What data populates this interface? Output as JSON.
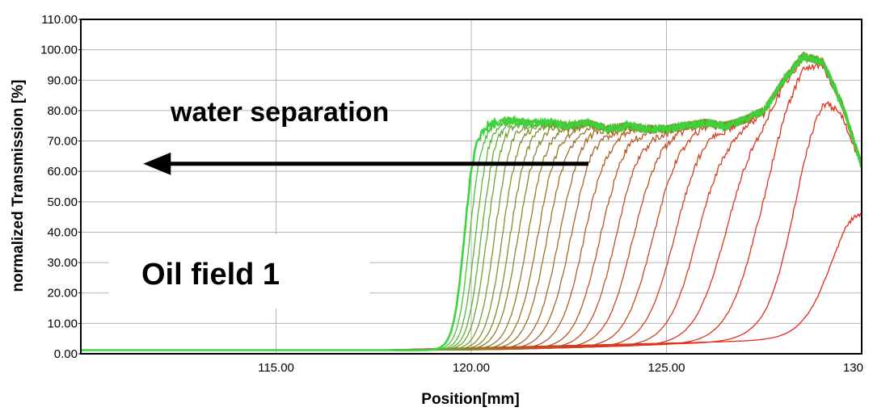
{
  "chart_data": {
    "type": "line",
    "title": "",
    "xlabel": "Position[mm]",
    "ylabel": "normalized Transmission [%]",
    "xlim": [
      110.0,
      130.0
    ],
    "ylim": [
      0,
      110
    ],
    "x_ticks": [
      "115.00",
      "120.00",
      "125.00",
      "130"
    ],
    "x_tick_values": [
      115,
      120,
      125,
      130
    ],
    "y_ticks": [
      "0.00",
      "10.00",
      "20.00",
      "30.00",
      "40.00",
      "50.00",
      "60.00",
      "70.00",
      "80.00",
      "90.00",
      "100.00",
      "110.00"
    ],
    "y_tick_values": [
      0,
      10,
      20,
      30,
      40,
      50,
      60,
      70,
      80,
      90,
      100,
      110
    ],
    "grid": true,
    "annotations": [
      {
        "text": "water separation",
        "arrow_from": [
          123.0,
          62.5
        ],
        "arrow_to": [
          111.6,
          62.5
        ]
      },
      {
        "text": "Oil field 1"
      }
    ],
    "colors": {
      "first_profile": "#3ad53a",
      "last_profile": "#e8291c",
      "grid": "#b4b4b4"
    },
    "plateau_profile": {
      "x": [
        119.7,
        120.0,
        120.5,
        121.0,
        121.5,
        122.0,
        122.5,
        123.0,
        123.5,
        124.0,
        124.5,
        125.0,
        125.5,
        126.0,
        126.5,
        127.0,
        127.5,
        128.0,
        128.5,
        129.0,
        129.5,
        130.0
      ],
      "y": [
        68,
        74,
        76,
        77,
        76,
        76,
        75,
        76,
        74,
        75,
        74,
        74,
        75,
        76,
        75,
        77,
        80,
        90,
        98,
        96,
        82,
        62
      ]
    },
    "series": [
      {
        "front_position": 119.8,
        "baseline_end": 0.8
      },
      {
        "front_position": 119.95,
        "baseline_end": 0.9
      },
      {
        "front_position": 120.1,
        "baseline_end": 1.0
      },
      {
        "front_position": 120.25,
        "baseline_end": 1.0
      },
      {
        "front_position": 120.4,
        "baseline_end": 1.1
      },
      {
        "front_position": 120.6,
        "baseline_end": 1.1
      },
      {
        "front_position": 120.8,
        "baseline_end": 1.2
      },
      {
        "front_position": 121.0,
        "baseline_end": 1.2
      },
      {
        "front_position": 121.2,
        "baseline_end": 1.3
      },
      {
        "front_position": 121.45,
        "baseline_end": 1.3
      },
      {
        "front_position": 121.7,
        "baseline_end": 1.4
      },
      {
        "front_position": 121.95,
        "baseline_end": 1.5
      },
      {
        "front_position": 122.25,
        "baseline_end": 1.6
      },
      {
        "front_position": 122.55,
        "baseline_end": 1.7
      },
      {
        "front_position": 122.9,
        "baseline_end": 1.8
      },
      {
        "front_position": 123.3,
        "baseline_end": 2.0
      },
      {
        "front_position": 123.7,
        "baseline_end": 2.2
      },
      {
        "front_position": 124.15,
        "baseline_end": 2.5
      },
      {
        "front_position": 124.65,
        "baseline_end": 2.8
      },
      {
        "front_position": 125.2,
        "baseline_end": 3.0
      },
      {
        "front_position": 125.8,
        "baseline_end": 3.3
      },
      {
        "front_position": 126.5,
        "baseline_end": 3.6
      },
      {
        "front_position": 127.3,
        "baseline_end": 4.0
      },
      {
        "front_position": 128.3,
        "baseline_end": 4.5
      },
      {
        "front_position": 129.6,
        "baseline_end": 5.0
      }
    ]
  }
}
